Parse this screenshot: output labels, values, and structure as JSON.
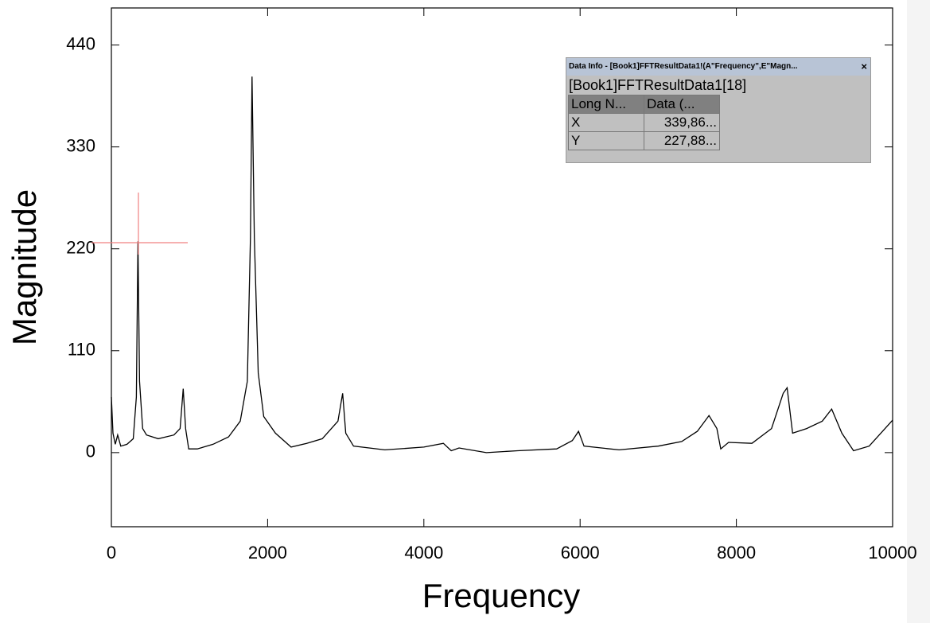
{
  "chart_data": {
    "type": "line",
    "xlabel": "Frequency",
    "ylabel": "Magnitude",
    "x": [
      0,
      20,
      50,
      80,
      120,
      200,
      280,
      320,
      340,
      360,
      400,
      450,
      600,
      800,
      880,
      920,
      950,
      990,
      1100,
      1300,
      1500,
      1650,
      1740,
      1780,
      1800,
      1830,
      1880,
      1950,
      2100,
      2300,
      2500,
      2700,
      2900,
      2960,
      3000,
      3100,
      3500,
      4000,
      4250,
      4350,
      4450,
      4800,
      5200,
      5700,
      5900,
      5980,
      6050,
      6500,
      7000,
      7300,
      7500,
      7650,
      7750,
      7800,
      7900,
      8200,
      8450,
      8600,
      8650,
      8720,
      8900,
      9100,
      9220,
      9350,
      9500,
      9700,
      10000
    ],
    "values": [
      60,
      21,
      9,
      19,
      7,
      9,
      15,
      60,
      228,
      77,
      26,
      19,
      15,
      19,
      26,
      69,
      26,
      4,
      4,
      9,
      17,
      34,
      77,
      232,
      406,
      232,
      86,
      39,
      21,
      6,
      10,
      15,
      34,
      64,
      21,
      7,
      3,
      6,
      10,
      2,
      5,
      0,
      2,
      4,
      13,
      23,
      7,
      3,
      7,
      12,
      23,
      40,
      26,
      4,
      11,
      10,
      26,
      64,
      70,
      21,
      26,
      34,
      47,
      21,
      2,
      7,
      35
    ],
    "color": "#000000",
    "xlim": [
      0,
      10000
    ],
    "xticks": [
      0,
      2000,
      4000,
      6000,
      8000,
      10000
    ],
    "ylim": [
      -80,
      480
    ],
    "yticks": [
      0,
      110,
      220,
      330,
      440
    ]
  },
  "data_info": {
    "title": "Data Info - [Book1]FFTResultData1!(A\"Frequency\",E\"Magn...",
    "close": "×",
    "subtitle": "[Book1]FFTResultData1[18]",
    "header": [
      "Long N...",
      "Data (..."
    ],
    "rows": [
      [
        "X",
        "339,86..."
      ],
      [
        "Y",
        "227,88..."
      ]
    ]
  }
}
